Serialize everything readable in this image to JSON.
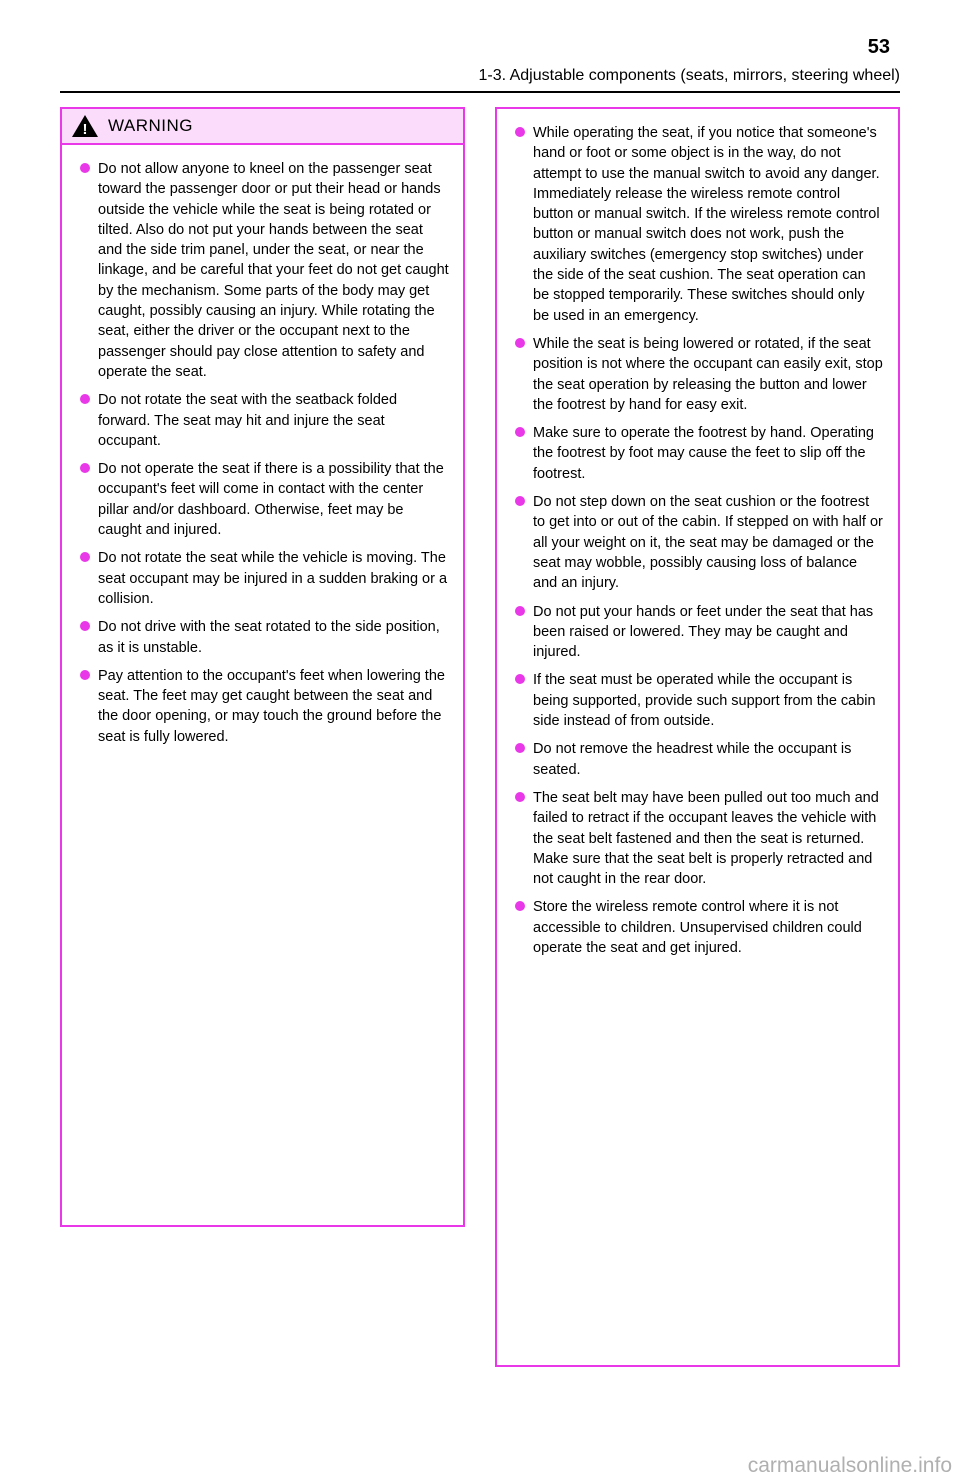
{
  "colors": {
    "box_border": "#e838e8",
    "header_bg": "#fbdcfb",
    "bullet": "#e838e8",
    "text": "#000000",
    "footer": "#b0b0b0"
  },
  "page_number": "53",
  "section": "1-3. Adjustable components (seats, mirrors, steering wheel)",
  "warning_title": "WARNING",
  "left_bullets": [
    "Do not allow anyone to kneel on the passenger seat toward the passenger door or put their head or hands outside the vehicle while the seat is being rotated or tilted. Also do not put your hands between the seat and the side trim panel, under the seat, or near the linkage, and be careful that your feet do not get caught by the mechanism. Some parts of the body may get caught, possibly causing an injury. While rotating the seat, either the driver or the occupant next to the passenger should pay close attention to safety and operate the seat.",
    "Do not rotate the seat with the seatback folded forward. The seat may hit and injure the seat occupant.",
    "Do not operate the seat if there is a possibility that the occupant's feet will come in contact with the center pillar and/or dashboard. Otherwise, feet may be caught and injured.",
    "Do not rotate the seat while the vehicle is moving. The seat occupant may be injured in a sudden braking or a collision.",
    "Do not drive with the seat rotated to the side position, as it is unstable.",
    "Pay attention to the occupant's feet when lowering the seat. The feet may get caught between the seat and the door opening, or may touch the ground before the seat is fully lowered."
  ],
  "right_bullets": [
    "While operating the seat, if you notice that someone's hand or foot or some object is in the way, do not attempt to use the manual switch to avoid any danger. Immediately release the wireless remote control button or manual switch. If the wireless remote control button or manual switch does not work, push the auxiliary switches (emergency stop switches) under the side of the seat cushion. The seat operation can be stopped temporarily. These switches should only be used in an emergency.",
    "While the seat is being lowered or rotated, if the seat position is not where the occupant can easily exit, stop the seat operation by releasing the button and lower the footrest by hand for easy exit.",
    "Make sure to operate the footrest by hand. Operating the footrest by foot may cause the feet to slip off the footrest.",
    "Do not step down on the seat cushion or the footrest to get into or out of the cabin. If stepped on with half or all your weight on it, the seat may be damaged or the seat may wobble, possibly causing loss of balance and an injury.",
    "Do not put your hands or feet under the seat that has been raised or lowered. They may be caught and injured.",
    "If the seat must be operated while the occupant is being supported, provide such support from the cabin side instead of from outside.",
    "Do not remove the headrest while the occupant is seated.",
    "The seat belt may have been pulled out too much and failed to retract if the occupant leaves the vehicle with the seat belt fastened and then the seat is returned. Make sure that the seat belt is properly retracted and not caught in the rear door.",
    "Store the wireless remote control where it is not accessible to children. Unsupervised children could operate the seat and get injured."
  ],
  "footer": "carmanualsonline.info"
}
